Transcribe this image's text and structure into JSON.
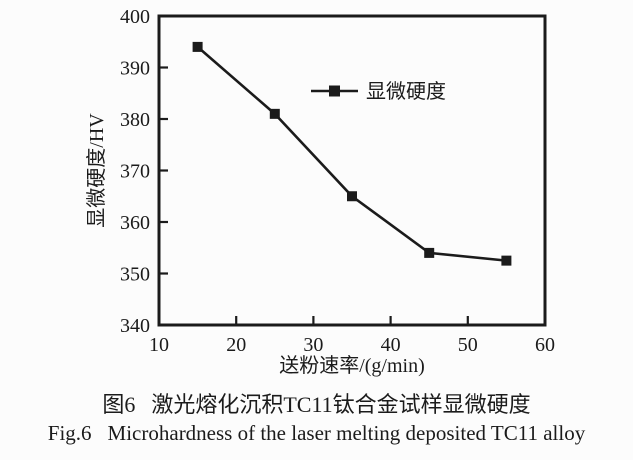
{
  "figure": {
    "caption_zh_prefix": "图6",
    "caption_zh_text": "激光熔化沉积TC11钛合金试样显微硬度",
    "caption_en_prefix": "Fig.6",
    "caption_en_text": "Microhardness of the laser melting deposited TC11 alloy"
  },
  "colors": {
    "ink": "#1b1b1b",
    "background": "#fcfcfc"
  },
  "chart_data": {
    "type": "line",
    "title": "",
    "xlabel": "送粉速率/(g/min)",
    "ylabel": "显微硬度/HV",
    "xlim": [
      10,
      60
    ],
    "ylim": [
      340,
      400
    ],
    "xticks": [
      10,
      20,
      30,
      40,
      50,
      60
    ],
    "yticks": [
      340,
      350,
      360,
      370,
      380,
      390,
      400
    ],
    "grid": false,
    "legend": {
      "entries": [
        "显微硬度"
      ],
      "position": "inside-upper-middle",
      "marker": "filled-square"
    },
    "series": [
      {
        "name": "显微硬度",
        "marker": "filled-square",
        "color": "#1b1b1b",
        "x": [
          15,
          25,
          35,
          45,
          55
        ],
        "y": [
          394,
          381,
          365,
          354,
          352.5
        ]
      }
    ]
  }
}
